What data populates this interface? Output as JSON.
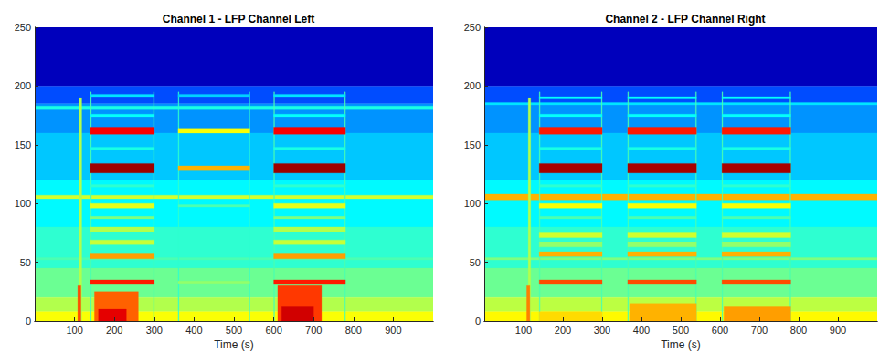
{
  "chart_data": [
    {
      "type": "heatmap",
      "title": "Channel 1 - LFP Channel Left",
      "xlabel": "Time (s)",
      "xlim": [
        0,
        1000
      ],
      "ylim": [
        0,
        250
      ],
      "xticks": [
        100,
        200,
        300,
        400,
        500,
        600,
        700,
        800,
        900
      ],
      "yticks": [
        0,
        50,
        100,
        150,
        200,
        250
      ],
      "color_range": [
        0,
        1
      ],
      "cells": [
        [
          0,
          1000,
          200,
          250,
          0.06
        ],
        [
          0,
          1000,
          185,
          200,
          0.2
        ],
        [
          0,
          1000,
          160,
          185,
          0.27
        ],
        [
          0,
          1000,
          120,
          160,
          0.32
        ],
        [
          0,
          1000,
          80,
          120,
          0.37
        ],
        [
          0,
          1000,
          45,
          80,
          0.42
        ],
        [
          0,
          1000,
          20,
          45,
          0.48
        ],
        [
          0,
          1000,
          8,
          20,
          0.55
        ],
        [
          0,
          1000,
          0,
          8,
          0.62
        ],
        [
          0,
          1000,
          180,
          183,
          0.4
        ],
        [
          0,
          1000,
          104,
          107,
          0.58
        ],
        [
          0,
          1000,
          52,
          54,
          0.45
        ],
        [
          112,
          118,
          0,
          190,
          0.55
        ],
        [
          108,
          116,
          0,
          30,
          0.8
        ],
        [
          140,
          142,
          0,
          195,
          0.45
        ],
        [
          298,
          300,
          0,
          195,
          0.45
        ],
        [
          140,
          300,
          191,
          193,
          0.35
        ],
        [
          140,
          300,
          174,
          176,
          0.38
        ],
        [
          140,
          300,
          159,
          165,
          0.88
        ],
        [
          140,
          300,
          146,
          148,
          0.4
        ],
        [
          140,
          300,
          126,
          134,
          0.97
        ],
        [
          140,
          300,
          114,
          116,
          0.42
        ],
        [
          140,
          300,
          96,
          100,
          0.6
        ],
        [
          140,
          300,
          87,
          89,
          0.5
        ],
        [
          140,
          300,
          76,
          80,
          0.55
        ],
        [
          140,
          300,
          65,
          69,
          0.57
        ],
        [
          140,
          300,
          53,
          57,
          0.72
        ],
        [
          140,
          300,
          31,
          35,
          0.85
        ],
        [
          150,
          260,
          0,
          25,
          0.78
        ],
        [
          160,
          230,
          0,
          10,
          0.9
        ],
        [
          360,
          362,
          0,
          195,
          0.42
        ],
        [
          538,
          540,
          0,
          195,
          0.42
        ],
        [
          360,
          540,
          191,
          193,
          0.33
        ],
        [
          360,
          540,
          160,
          164,
          0.62
        ],
        [
          360,
          540,
          128,
          132,
          0.7
        ],
        [
          360,
          540,
          97,
          99,
          0.45
        ],
        [
          360,
          540,
          32,
          34,
          0.52
        ],
        [
          600,
          602,
          0,
          195,
          0.45
        ],
        [
          778,
          780,
          0,
          195,
          0.45
        ],
        [
          600,
          780,
          191,
          193,
          0.35
        ],
        [
          600,
          780,
          174,
          176,
          0.38
        ],
        [
          600,
          780,
          159,
          165,
          0.88
        ],
        [
          600,
          780,
          146,
          148,
          0.4
        ],
        [
          600,
          780,
          126,
          134,
          0.97
        ],
        [
          600,
          780,
          114,
          116,
          0.42
        ],
        [
          600,
          780,
          96,
          100,
          0.6
        ],
        [
          600,
          780,
          87,
          89,
          0.5
        ],
        [
          600,
          780,
          76,
          80,
          0.55
        ],
        [
          600,
          780,
          65,
          69,
          0.57
        ],
        [
          600,
          780,
          53,
          57,
          0.72
        ],
        [
          600,
          780,
          31,
          35,
          0.85
        ],
        [
          610,
          720,
          0,
          30,
          0.82
        ],
        [
          620,
          700,
          0,
          12,
          0.92
        ]
      ]
    },
    {
      "type": "heatmap",
      "title": "Channel 2 - LFP Channel Right",
      "xlabel": "Time (s)",
      "xlim": [
        0,
        1000
      ],
      "ylim": [
        0,
        250
      ],
      "xticks": [
        100,
        200,
        300,
        400,
        500,
        600,
        700,
        800,
        900
      ],
      "yticks": [
        0,
        50,
        100,
        150,
        200,
        250
      ],
      "color_range": [
        0,
        1
      ],
      "cells": [
        [
          0,
          1000,
          200,
          250,
          0.06
        ],
        [
          0,
          1000,
          185,
          200,
          0.2
        ],
        [
          0,
          1000,
          160,
          185,
          0.27
        ],
        [
          0,
          1000,
          120,
          160,
          0.32
        ],
        [
          0,
          1000,
          80,
          120,
          0.37
        ],
        [
          0,
          1000,
          45,
          80,
          0.42
        ],
        [
          0,
          1000,
          20,
          45,
          0.48
        ],
        [
          0,
          1000,
          8,
          20,
          0.56
        ],
        [
          0,
          1000,
          0,
          8,
          0.63
        ],
        [
          0,
          1000,
          184,
          186,
          0.35
        ],
        [
          0,
          1000,
          103,
          108,
          0.7
        ],
        [
          0,
          1000,
          52,
          54,
          0.5
        ],
        [
          112,
          118,
          0,
          190,
          0.55
        ],
        [
          108,
          116,
          0,
          30,
          0.75
        ],
        [
          140,
          142,
          0,
          195,
          0.45
        ],
        [
          298,
          300,
          0,
          195,
          0.45
        ],
        [
          140,
          300,
          189,
          191,
          0.38
        ],
        [
          140,
          300,
          174,
          176,
          0.38
        ],
        [
          140,
          300,
          159,
          165,
          0.85
        ],
        [
          140,
          300,
          146,
          148,
          0.4
        ],
        [
          140,
          300,
          126,
          134,
          0.96
        ],
        [
          140,
          300,
          114,
          116,
          0.42
        ],
        [
          140,
          300,
          96,
          100,
          0.62
        ],
        [
          140,
          300,
          87,
          89,
          0.45
        ],
        [
          140,
          300,
          71,
          75,
          0.58
        ],
        [
          140,
          300,
          63,
          67,
          0.52
        ],
        [
          140,
          300,
          55,
          59,
          0.7
        ],
        [
          140,
          300,
          31,
          35,
          0.8
        ],
        [
          140,
          300,
          0,
          8,
          0.66
        ],
        [
          365,
          367,
          0,
          195,
          0.45
        ],
        [
          538,
          540,
          0,
          195,
          0.45
        ],
        [
          365,
          540,
          189,
          191,
          0.38
        ],
        [
          365,
          540,
          174,
          176,
          0.38
        ],
        [
          365,
          540,
          159,
          165,
          0.85
        ],
        [
          365,
          540,
          146,
          148,
          0.4
        ],
        [
          365,
          540,
          126,
          134,
          0.96
        ],
        [
          365,
          540,
          114,
          116,
          0.42
        ],
        [
          365,
          540,
          96,
          100,
          0.62
        ],
        [
          365,
          540,
          87,
          89,
          0.45
        ],
        [
          365,
          540,
          71,
          75,
          0.58
        ],
        [
          365,
          540,
          63,
          67,
          0.52
        ],
        [
          365,
          540,
          55,
          59,
          0.7
        ],
        [
          365,
          540,
          31,
          35,
          0.8
        ],
        [
          370,
          540,
          0,
          15,
          0.7
        ],
        [
          605,
          607,
          0,
          195,
          0.45
        ],
        [
          778,
          780,
          0,
          195,
          0.45
        ],
        [
          605,
          780,
          189,
          191,
          0.38
        ],
        [
          605,
          780,
          174,
          176,
          0.38
        ],
        [
          605,
          780,
          159,
          165,
          0.85
        ],
        [
          605,
          780,
          146,
          148,
          0.4
        ],
        [
          605,
          780,
          126,
          134,
          0.96
        ],
        [
          605,
          780,
          114,
          116,
          0.42
        ],
        [
          605,
          780,
          96,
          100,
          0.62
        ],
        [
          605,
          780,
          87,
          89,
          0.45
        ],
        [
          605,
          780,
          71,
          75,
          0.58
        ],
        [
          605,
          780,
          63,
          67,
          0.52
        ],
        [
          605,
          780,
          55,
          59,
          0.7
        ],
        [
          605,
          780,
          31,
          35,
          0.8
        ],
        [
          610,
          780,
          0,
          12,
          0.72
        ]
      ]
    }
  ]
}
